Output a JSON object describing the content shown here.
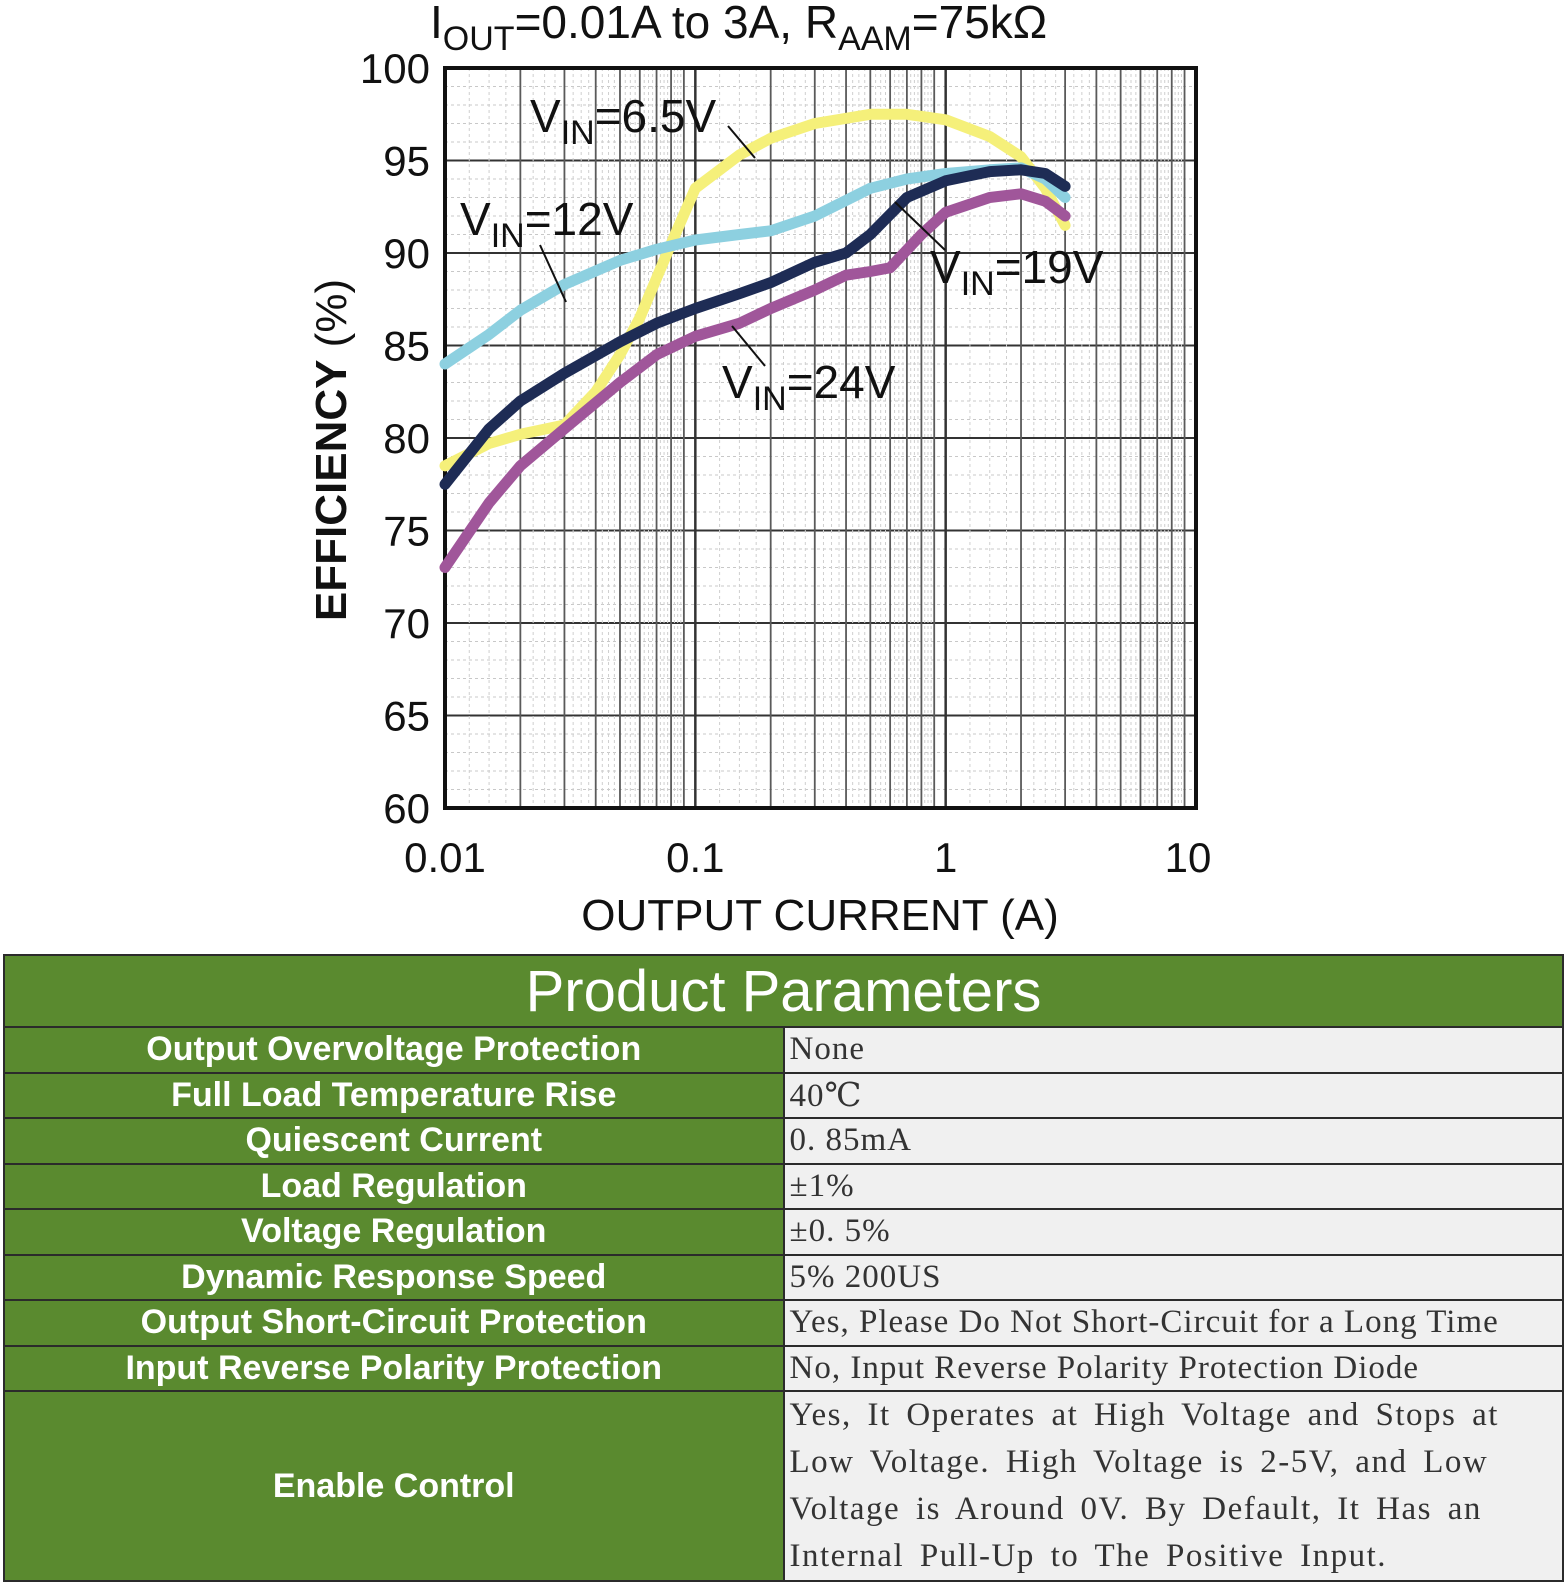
{
  "chart_data": {
    "type": "line",
    "title": "IOUT=0.01A to 3A, RAAM=75kΩ",
    "title_parts": {
      "i": "I",
      "out": "OUT",
      "range": "=0.01A to 3A, R",
      "aam": "AAM",
      "rest": "=75kΩ"
    },
    "xlabel": "OUTPUT CURRENT (A)",
    "ylabel": "EFFICIENCY (%)",
    "x_scale": "log",
    "xlim": [
      0.01,
      10
    ],
    "ylim": [
      60,
      100
    ],
    "x_ticks": [
      "0.01",
      "0.1",
      "1",
      "10"
    ],
    "y_ticks": [
      "100",
      "95",
      "90",
      "85",
      "80",
      "75",
      "70",
      "65",
      "60"
    ],
    "grid": true,
    "series": [
      {
        "name": "VIN=6.5V",
        "label_main": "V",
        "label_sub": "IN",
        "label_rest": "=6.5V",
        "color": "#f5f07a",
        "x": [
          0.01,
          0.015,
          0.02,
          0.03,
          0.04,
          0.05,
          0.06,
          0.08,
          0.1,
          0.15,
          0.2,
          0.3,
          0.5,
          0.7,
          1.0,
          1.5,
          2.0,
          2.5,
          3.0
        ],
        "y": [
          78.5,
          79.7,
          80.2,
          80.7,
          82.5,
          84.5,
          86.5,
          90.5,
          93.5,
          95.3,
          96.2,
          97.0,
          97.5,
          97.5,
          97.2,
          96.3,
          95.2,
          93.5,
          91.5
        ]
      },
      {
        "name": "VIN=12V",
        "label_main": "V",
        "label_sub": "IN",
        "label_rest": "=12V",
        "color": "#8dd0e0",
        "x": [
          0.01,
          0.015,
          0.02,
          0.03,
          0.05,
          0.07,
          0.1,
          0.15,
          0.2,
          0.3,
          0.5,
          0.7,
          1.0,
          1.5,
          2.0,
          2.5,
          3.0
        ],
        "y": [
          84.0,
          85.6,
          86.9,
          88.3,
          89.6,
          90.2,
          90.7,
          91.0,
          91.2,
          92.0,
          93.5,
          94.0,
          94.3,
          94.5,
          94.6,
          94.0,
          93.0
        ]
      },
      {
        "name": "VIN=19V",
        "label_main": "V",
        "label_sub": "IN",
        "label_rest": "=19V",
        "color": "#1e2c55",
        "x": [
          0.01,
          0.015,
          0.02,
          0.03,
          0.05,
          0.07,
          0.1,
          0.15,
          0.2,
          0.3,
          0.4,
          0.5,
          0.7,
          1.0,
          1.5,
          2.0,
          2.5,
          3.0
        ],
        "y": [
          77.5,
          80.5,
          82.0,
          83.5,
          85.2,
          86.2,
          87.0,
          87.8,
          88.4,
          89.5,
          90.0,
          91.0,
          93.0,
          93.9,
          94.4,
          94.5,
          94.3,
          93.6
        ]
      },
      {
        "name": "VIN=24V",
        "label_main": "V",
        "label_sub": "IN",
        "label_rest": "=24V",
        "color": "#a0569a",
        "x": [
          0.01,
          0.015,
          0.02,
          0.03,
          0.05,
          0.07,
          0.1,
          0.15,
          0.2,
          0.3,
          0.4,
          0.5,
          0.6,
          0.8,
          1.0,
          1.5,
          2.0,
          2.5,
          3.0
        ],
        "y": [
          73.0,
          76.5,
          78.5,
          80.5,
          83.0,
          84.5,
          85.5,
          86.2,
          87.0,
          88.0,
          88.8,
          89.0,
          89.2,
          91.0,
          92.2,
          93.0,
          93.2,
          92.8,
          92.0
        ]
      }
    ]
  },
  "table": {
    "title": "Product Parameters",
    "rows": [
      {
        "label": "Output Overvoltage Protection",
        "value": "None"
      },
      {
        "label": "Full Load Temperature Rise",
        "value": "40℃"
      },
      {
        "label": "Quiescent Current",
        "value": "0. 85mA"
      },
      {
        "label": "Load Regulation",
        "value": "±1%"
      },
      {
        "label": "Voltage Regulation",
        "value": "±0. 5%"
      },
      {
        "label": "Dynamic Response Speed",
        "value": "5% 200US"
      },
      {
        "label": "Output Short-Circuit Protection",
        "value": "Yes, Please Do Not Short-Circuit for a Long Time"
      },
      {
        "label": "Input Reverse Polarity Protection",
        "value": "No, Input Reverse Polarity Protection Diode"
      },
      {
        "label": "Enable Control",
        "value": "Yes, It Operates at High Voltage and Stops at Low Voltage. High Voltage is 2-5V, and Low Voltage is Around 0V. By Default, It Has an Internal Pull-Up to The Positive Input."
      }
    ]
  }
}
